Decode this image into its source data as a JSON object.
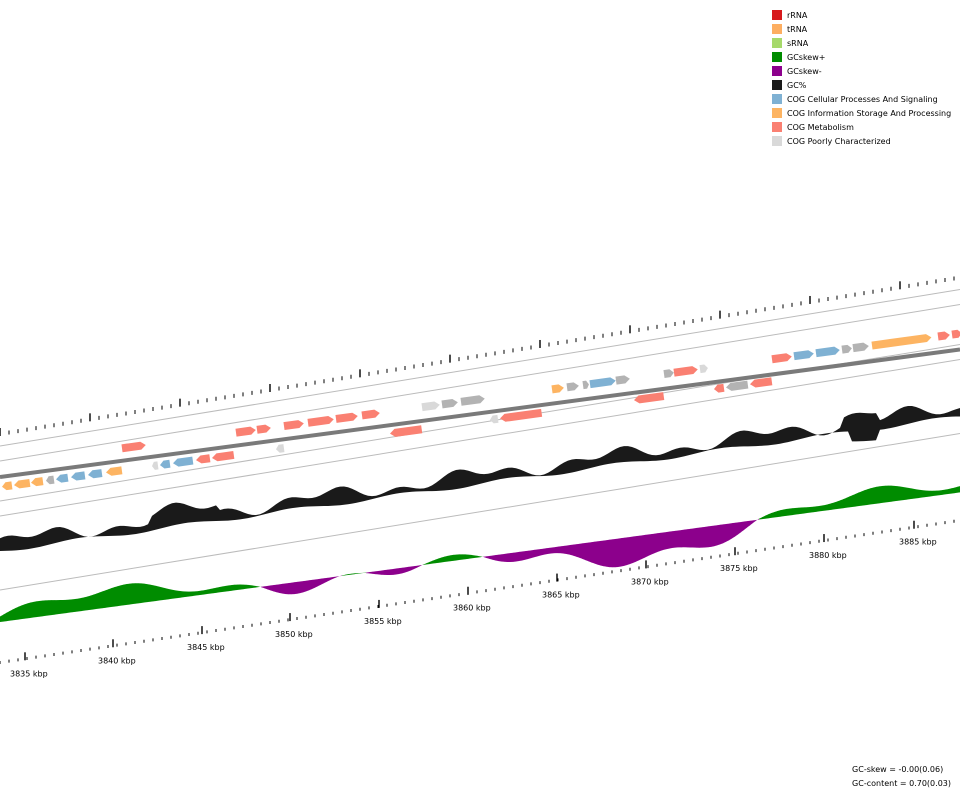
{
  "legend": [
    {
      "label": "rRNA",
      "color": "#d7191c"
    },
    {
      "label": "tRNA",
      "color": "#fdae61"
    },
    {
      "label": "sRNA",
      "color": "#a6d96a"
    },
    {
      "label": "GCskew+",
      "color": "#008c00"
    },
    {
      "label": "GCskew-",
      "color": "#8c008c"
    },
    {
      "label": "GC%",
      "color": "#1a1a1a"
    },
    {
      "label": "COG Cellular Processes And Signaling",
      "color": "#7fb1d3"
    },
    {
      "label": "COG Information Storage And Processing",
      "color": "#fdb462"
    },
    {
      "label": "COG Metabolism",
      "color": "#fa8072"
    },
    {
      "label": "COG Poorly Characterized",
      "color": "#d9d9d9"
    }
  ],
  "axis": {
    "unit": "kbp",
    "ticks": [
      3835,
      3840,
      3845,
      3850,
      3855,
      3860,
      3865,
      3870,
      3875,
      3880,
      3885
    ]
  },
  "stats": {
    "gc_skew": "GC-skew = -0.00(0.06)",
    "gc_content": "GC-content = 0.70(0.03)"
  },
  "colors": {
    "backbone": "#7a7a7a",
    "track_line": "#bbbbbb",
    "unassigned_gene": "#b3b3b3",
    "gc_content": "#1a1a1a",
    "gc_skew_pos": "#008c00",
    "gc_skew_neg": "#8c008c"
  }
}
